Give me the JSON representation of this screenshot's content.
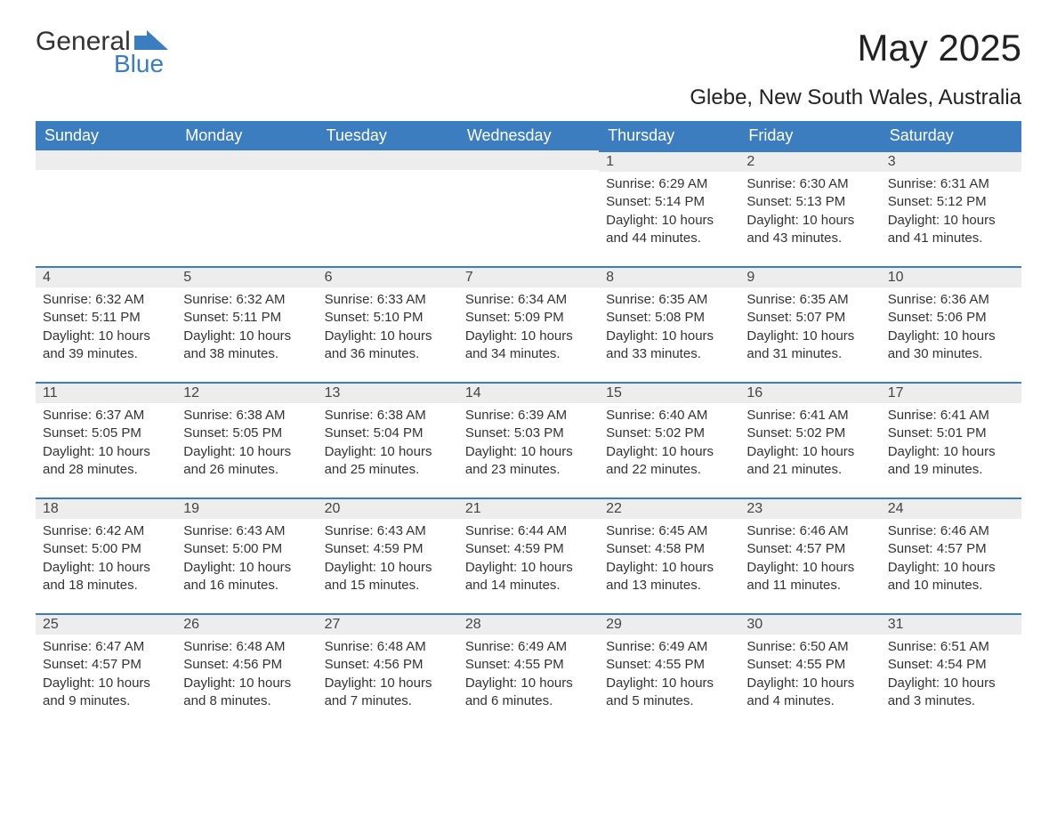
{
  "logo": {
    "text_general": "General",
    "text_blue": "Blue",
    "flag_color": "#3b7dbf"
  },
  "header": {
    "title": "May 2025",
    "location": "Glebe, New South Wales, Australia"
  },
  "calendar": {
    "header_bg": "#3b7dbf",
    "header_text_color": "#ffffff",
    "day_bar_bg": "#ededed",
    "day_bar_border": "#3b7dbf",
    "text_color": "#333333",
    "weekdays": [
      "Sunday",
      "Monday",
      "Tuesday",
      "Wednesday",
      "Thursday",
      "Friday",
      "Saturday"
    ],
    "weeks": [
      [
        null,
        null,
        null,
        null,
        {
          "day": "1",
          "sunrise": "Sunrise: 6:29 AM",
          "sunset": "Sunset: 5:14 PM",
          "daylight": "Daylight: 10 hours and 44 minutes."
        },
        {
          "day": "2",
          "sunrise": "Sunrise: 6:30 AM",
          "sunset": "Sunset: 5:13 PM",
          "daylight": "Daylight: 10 hours and 43 minutes."
        },
        {
          "day": "3",
          "sunrise": "Sunrise: 6:31 AM",
          "sunset": "Sunset: 5:12 PM",
          "daylight": "Daylight: 10 hours and 41 minutes."
        }
      ],
      [
        {
          "day": "4",
          "sunrise": "Sunrise: 6:32 AM",
          "sunset": "Sunset: 5:11 PM",
          "daylight": "Daylight: 10 hours and 39 minutes."
        },
        {
          "day": "5",
          "sunrise": "Sunrise: 6:32 AM",
          "sunset": "Sunset: 5:11 PM",
          "daylight": "Daylight: 10 hours and 38 minutes."
        },
        {
          "day": "6",
          "sunrise": "Sunrise: 6:33 AM",
          "sunset": "Sunset: 5:10 PM",
          "daylight": "Daylight: 10 hours and 36 minutes."
        },
        {
          "day": "7",
          "sunrise": "Sunrise: 6:34 AM",
          "sunset": "Sunset: 5:09 PM",
          "daylight": "Daylight: 10 hours and 34 minutes."
        },
        {
          "day": "8",
          "sunrise": "Sunrise: 6:35 AM",
          "sunset": "Sunset: 5:08 PM",
          "daylight": "Daylight: 10 hours and 33 minutes."
        },
        {
          "day": "9",
          "sunrise": "Sunrise: 6:35 AM",
          "sunset": "Sunset: 5:07 PM",
          "daylight": "Daylight: 10 hours and 31 minutes."
        },
        {
          "day": "10",
          "sunrise": "Sunrise: 6:36 AM",
          "sunset": "Sunset: 5:06 PM",
          "daylight": "Daylight: 10 hours and 30 minutes."
        }
      ],
      [
        {
          "day": "11",
          "sunrise": "Sunrise: 6:37 AM",
          "sunset": "Sunset: 5:05 PM",
          "daylight": "Daylight: 10 hours and 28 minutes."
        },
        {
          "day": "12",
          "sunrise": "Sunrise: 6:38 AM",
          "sunset": "Sunset: 5:05 PM",
          "daylight": "Daylight: 10 hours and 26 minutes."
        },
        {
          "day": "13",
          "sunrise": "Sunrise: 6:38 AM",
          "sunset": "Sunset: 5:04 PM",
          "daylight": "Daylight: 10 hours and 25 minutes."
        },
        {
          "day": "14",
          "sunrise": "Sunrise: 6:39 AM",
          "sunset": "Sunset: 5:03 PM",
          "daylight": "Daylight: 10 hours and 23 minutes."
        },
        {
          "day": "15",
          "sunrise": "Sunrise: 6:40 AM",
          "sunset": "Sunset: 5:02 PM",
          "daylight": "Daylight: 10 hours and 22 minutes."
        },
        {
          "day": "16",
          "sunrise": "Sunrise: 6:41 AM",
          "sunset": "Sunset: 5:02 PM",
          "daylight": "Daylight: 10 hours and 21 minutes."
        },
        {
          "day": "17",
          "sunrise": "Sunrise: 6:41 AM",
          "sunset": "Sunset: 5:01 PM",
          "daylight": "Daylight: 10 hours and 19 minutes."
        }
      ],
      [
        {
          "day": "18",
          "sunrise": "Sunrise: 6:42 AM",
          "sunset": "Sunset: 5:00 PM",
          "daylight": "Daylight: 10 hours and 18 minutes."
        },
        {
          "day": "19",
          "sunrise": "Sunrise: 6:43 AM",
          "sunset": "Sunset: 5:00 PM",
          "daylight": "Daylight: 10 hours and 16 minutes."
        },
        {
          "day": "20",
          "sunrise": "Sunrise: 6:43 AM",
          "sunset": "Sunset: 4:59 PM",
          "daylight": "Daylight: 10 hours and 15 minutes."
        },
        {
          "day": "21",
          "sunrise": "Sunrise: 6:44 AM",
          "sunset": "Sunset: 4:59 PM",
          "daylight": "Daylight: 10 hours and 14 minutes."
        },
        {
          "day": "22",
          "sunrise": "Sunrise: 6:45 AM",
          "sunset": "Sunset: 4:58 PM",
          "daylight": "Daylight: 10 hours and 13 minutes."
        },
        {
          "day": "23",
          "sunrise": "Sunrise: 6:46 AM",
          "sunset": "Sunset: 4:57 PM",
          "daylight": "Daylight: 10 hours and 11 minutes."
        },
        {
          "day": "24",
          "sunrise": "Sunrise: 6:46 AM",
          "sunset": "Sunset: 4:57 PM",
          "daylight": "Daylight: 10 hours and 10 minutes."
        }
      ],
      [
        {
          "day": "25",
          "sunrise": "Sunrise: 6:47 AM",
          "sunset": "Sunset: 4:57 PM",
          "daylight": "Daylight: 10 hours and 9 minutes."
        },
        {
          "day": "26",
          "sunrise": "Sunrise: 6:48 AM",
          "sunset": "Sunset: 4:56 PM",
          "daylight": "Daylight: 10 hours and 8 minutes."
        },
        {
          "day": "27",
          "sunrise": "Sunrise: 6:48 AM",
          "sunset": "Sunset: 4:56 PM",
          "daylight": "Daylight: 10 hours and 7 minutes."
        },
        {
          "day": "28",
          "sunrise": "Sunrise: 6:49 AM",
          "sunset": "Sunset: 4:55 PM",
          "daylight": "Daylight: 10 hours and 6 minutes."
        },
        {
          "day": "29",
          "sunrise": "Sunrise: 6:49 AM",
          "sunset": "Sunset: 4:55 PM",
          "daylight": "Daylight: 10 hours and 5 minutes."
        },
        {
          "day": "30",
          "sunrise": "Sunrise: 6:50 AM",
          "sunset": "Sunset: 4:55 PM",
          "daylight": "Daylight: 10 hours and 4 minutes."
        },
        {
          "day": "31",
          "sunrise": "Sunrise: 6:51 AM",
          "sunset": "Sunset: 4:54 PM",
          "daylight": "Daylight: 10 hours and 3 minutes."
        }
      ]
    ]
  }
}
